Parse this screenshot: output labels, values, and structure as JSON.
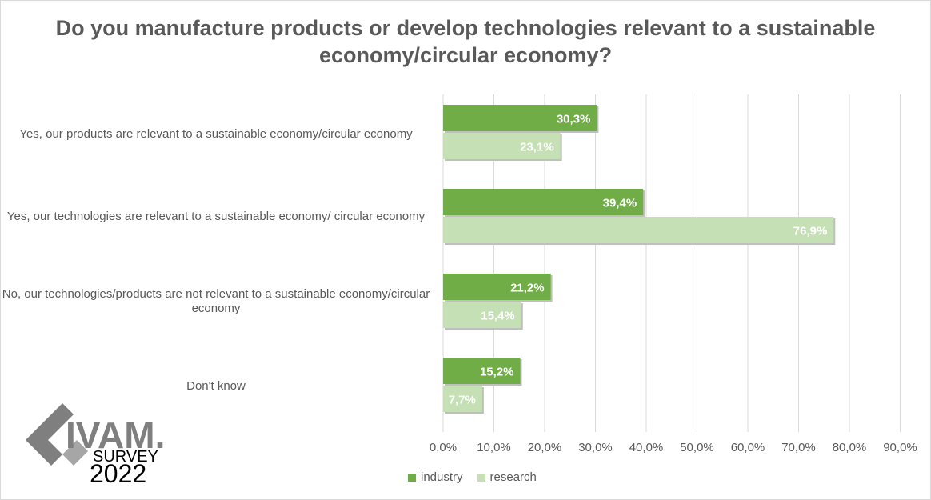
{
  "chart_data": {
    "type": "bar",
    "orientation": "horizontal",
    "title": "Do you manufacture products or develop technologies relevant to a sustainable economy/circular economy?",
    "categories": [
      "Yes, our products are relevant to a sustainable economy/circular economy",
      "Yes, our technologies are relevant to a sustainable economy/ circular economy",
      "No, our technologies/products are not relevant to a sustainable economy/circular economy",
      "Don't know"
    ],
    "series": [
      {
        "name": "industry",
        "color": "#70ad47",
        "values": [
          30.3,
          39.4,
          21.2,
          15.2
        ],
        "labels": [
          "30,3%",
          "39,4%",
          "21,2%",
          "15,2%"
        ]
      },
      {
        "name": "research",
        "color": "#c5e0b4",
        "values": [
          23.1,
          76.9,
          15.4,
          7.7
        ],
        "labels": [
          "23,1%",
          "76,9%",
          "15,4%",
          "7,7%"
        ]
      }
    ],
    "xlim": [
      0,
      90
    ],
    "ticks": [
      0,
      10,
      20,
      30,
      40,
      50,
      60,
      70,
      80,
      90
    ],
    "tick_labels": [
      "0,0%",
      "10,0%",
      "20,0%",
      "30,0%",
      "40,0%",
      "50,0%",
      "60,0%",
      "70,0%",
      "80,0%",
      "90,0%"
    ],
    "grid": true,
    "legend_position": "bottom"
  },
  "logo": {
    "brand": "IVAM.",
    "line2": "SURVEY",
    "line3": "2022",
    "color": "#7f7f7f"
  }
}
